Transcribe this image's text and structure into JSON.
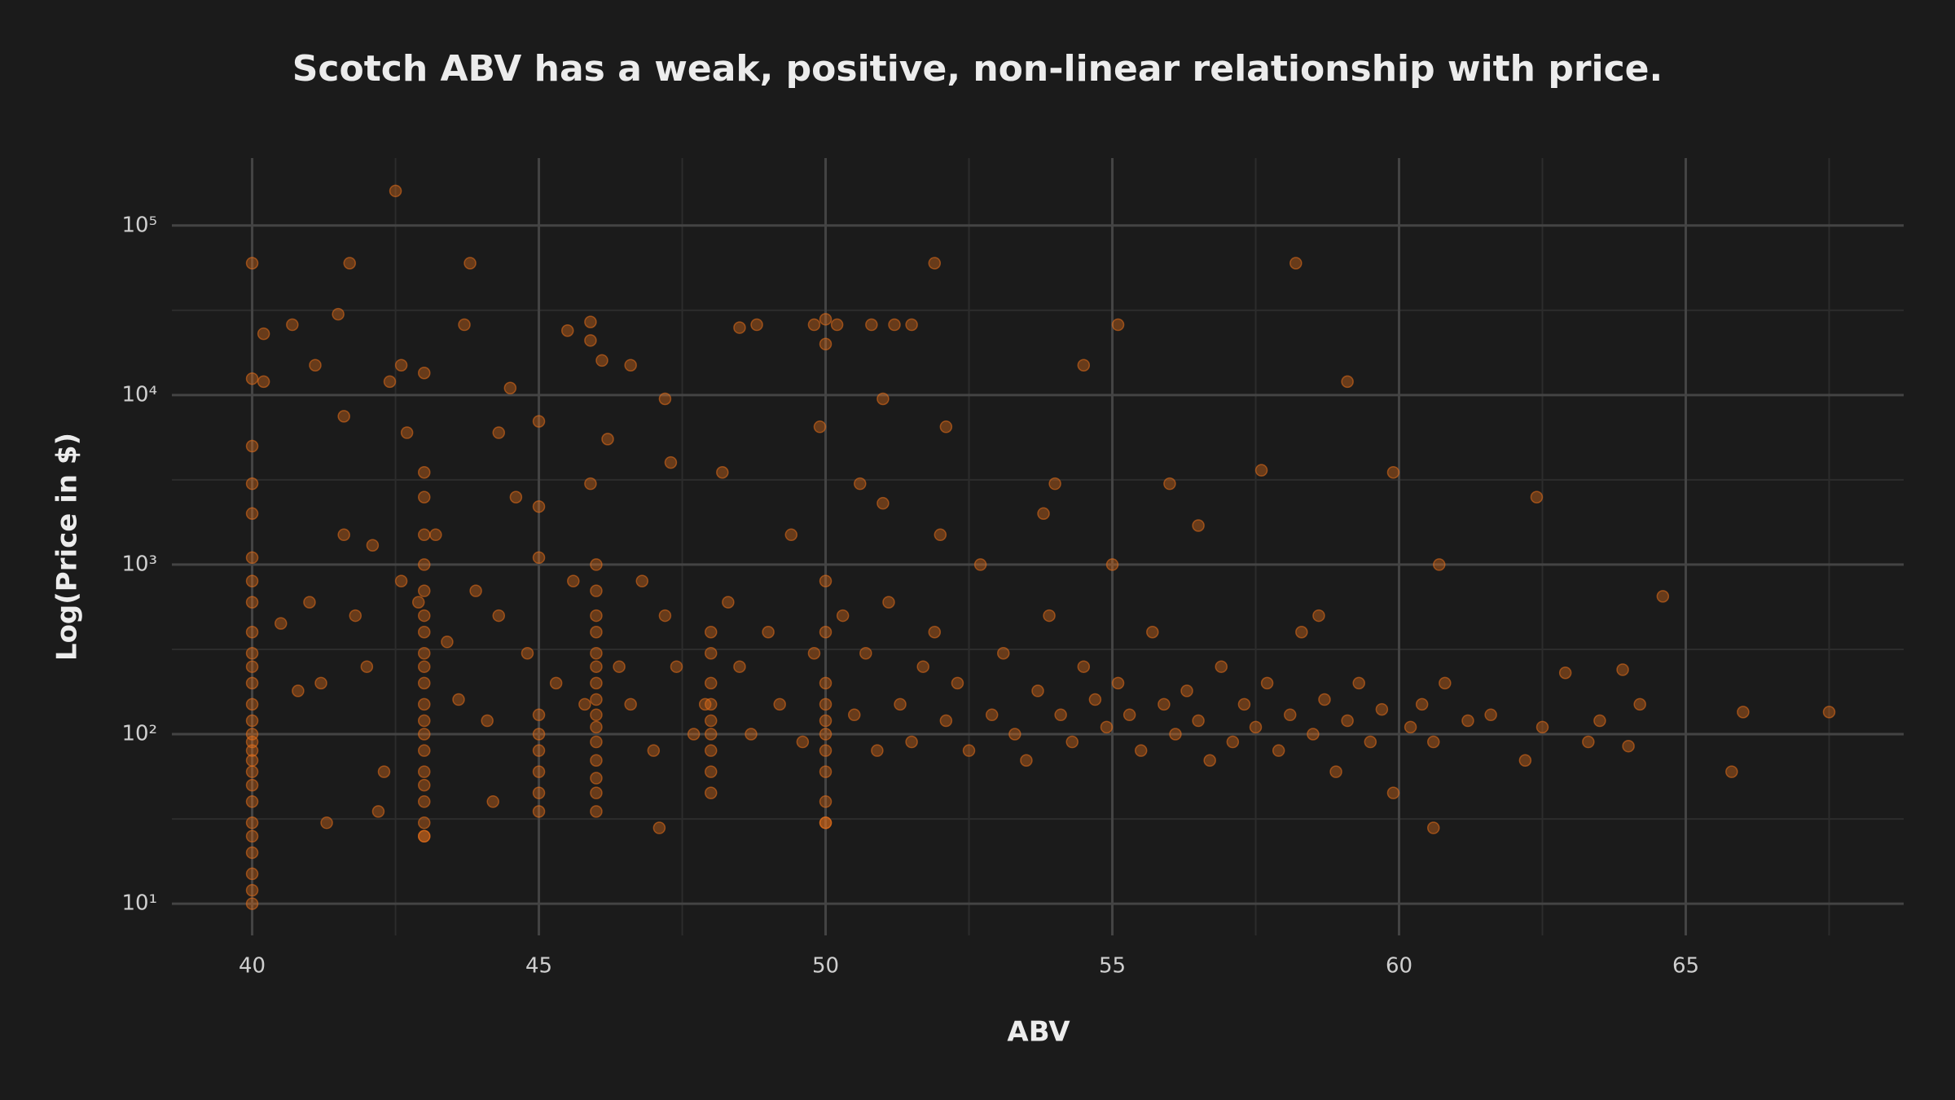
{
  "chart_data": {
    "type": "scatter",
    "title": "Scotch ABV has a weak, positive, non-linear relationship with price.",
    "x_label": "ABV",
    "y_label": "Log(Price in $)",
    "color": "#e8701a",
    "log_y": true,
    "grid": true,
    "xlim": [
      38.6,
      68.8
    ],
    "xticks": [
      40,
      45,
      50,
      55,
      60,
      65
    ],
    "x_minor_grid": [
      42.5,
      47.5,
      52.5,
      57.5,
      62.5,
      67.5
    ],
    "ylim": [
      6.5,
      250000
    ],
    "yticks": [
      {
        "value": 10,
        "label": "10¹"
      },
      {
        "value": 100,
        "label": "10²"
      },
      {
        "value": 1000,
        "label": "10³"
      },
      {
        "value": 10000,
        "label": "10⁴"
      },
      {
        "value": 100000,
        "label": "10⁵"
      }
    ],
    "y_minor_grid": [
      31.6,
      316,
      3162,
      31623
    ],
    "x": [
      40,
      40,
      40.2,
      40.2,
      40.7,
      41.1,
      41.5,
      41.7,
      42.4,
      42.5,
      42.6,
      43,
      43.8,
      43.7,
      45.5,
      45.9,
      45.9,
      46.1,
      46.6,
      48.5,
      48.8,
      49.8,
      50,
      50,
      50.2,
      50.8,
      51.2,
      51.5,
      51.9,
      55.1,
      54.5,
      58.2,
      59.1,
      47.2,
      51,
      44.5,
      45,
      49.9,
      52.1,
      56.5,
      62.4,
      64.6,
      66,
      67.5,
      65.8,
      60.6,
      47.1,
      50,
      40,
      40,
      43,
      41.3,
      44.2,
      42.2,
      40,
      40,
      40,
      40,
      40,
      40,
      40,
      40,
      40,
      40,
      40,
      40,
      40,
      40,
      40,
      40,
      40,
      40,
      40,
      40,
      40,
      40,
      40,
      43,
      43,
      43,
      43,
      43,
      43,
      43,
      43,
      43,
      43,
      43,
      43,
      43,
      43,
      43,
      43,
      43,
      43,
      43,
      46,
      46,
      46,
      46,
      46,
      46,
      46,
      46,
      46,
      46,
      46,
      46,
      46,
      46,
      46,
      48,
      48,
      48,
      48,
      48,
      48,
      48,
      48,
      48,
      50,
      50,
      50,
      50,
      50,
      50,
      50,
      50,
      50,
      50,
      45,
      45,
      45,
      45,
      45,
      45,
      45,
      45,
      40.5,
      40.8,
      41,
      41.2,
      41.6,
      41.8,
      42,
      42.1,
      42.3,
      42.6,
      42.9,
      43.4,
      43.6,
      43.9,
      44.1,
      44.3,
      44.6,
      44.8,
      45.3,
      45.6,
      45.8,
      46.4,
      46.6,
      46.8,
      47,
      47.2,
      47.4,
      47.7,
      47.9,
      48.3,
      48.5,
      48.7,
      49,
      49.2,
      49.4,
      49.6,
      49.8,
      50.3,
      50.5,
      50.7,
      50.9,
      51.1,
      51.3,
      51.5,
      51.7,
      51.9,
      52.1,
      52.3,
      52.5,
      52.7,
      52.9,
      53.1,
      53.3,
      53.5,
      53.7,
      53.9,
      54.1,
      54.3,
      54.5,
      54.7,
      54.9,
      55.1,
      55.3,
      55.5,
      55.7,
      55.9,
      56.1,
      56.3,
      56.5,
      56.7,
      56.9,
      57.1,
      57.3,
      57.5,
      57.7,
      57.9,
      58.1,
      58.3,
      58.5,
      58.7,
      58.9,
      59.1,
      59.3,
      59.5,
      59.7,
      59.9,
      60.2,
      60.4,
      60.6,
      60.8,
      61.2,
      61.6,
      62.2,
      62.5,
      62.9,
      63.3,
      63.5,
      64,
      64.2,
      63.9,
      55,
      54,
      53.8,
      56,
      57.6,
      59.9,
      58.6,
      60.7,
      52,
      51,
      50.6,
      48.2,
      47.3,
      46.2,
      45.9,
      44.3,
      43.2,
      42.7,
      41.6
    ],
    "values": [
      60000,
      12500,
      12000,
      23000,
      26000,
      15000,
      30000,
      60000,
      12000,
      160000,
      15000,
      13500,
      60000,
      26000,
      24000,
      27000,
      21000,
      16000,
      15000,
      25000,
      26000,
      26000,
      28000,
      20000,
      26000,
      26000,
      26000,
      26000,
      60000,
      26000,
      15000,
      60000,
      12000,
      9500,
      9500,
      11000,
      7000,
      6500,
      6500,
      1700,
      2500,
      650,
      135,
      135,
      60,
      28,
      28,
      30,
      10,
      12,
      25,
      30,
      40,
      35,
      15,
      20,
      25,
      30,
      40,
      50,
      60,
      70,
      80,
      90,
      100,
      120,
      150,
      200,
      250,
      300,
      400,
      600,
      800,
      1100,
      2000,
      3000,
      5000,
      25,
      30,
      40,
      50,
      60,
      80,
      100,
      120,
      150,
      200,
      250,
      300,
      400,
      500,
      700,
      1000,
      1500,
      2500,
      3500,
      35,
      45,
      55,
      70,
      90,
      110,
      130,
      160,
      200,
      250,
      300,
      400,
      500,
      700,
      1000,
      45,
      60,
      80,
      100,
      120,
      150,
      200,
      300,
      400,
      30,
      40,
      60,
      80,
      100,
      120,
      150,
      200,
      400,
      800,
      35,
      45,
      60,
      80,
      100,
      130,
      1100,
      2200,
      450,
      180,
      600,
      200,
      1500,
      500,
      250,
      1300,
      60,
      800,
      600,
      350,
      160,
      700,
      120,
      500,
      2500,
      300,
      200,
      800,
      150,
      250,
      150,
      800,
      80,
      500,
      250,
      100,
      150,
      600,
      250,
      100,
      400,
      150,
      1500,
      90,
      300,
      500,
      130,
      300,
      80,
      600,
      150,
      90,
      250,
      400,
      120,
      200,
      80,
      1000,
      130,
      300,
      100,
      70,
      180,
      500,
      130,
      90,
      250,
      160,
      110,
      200,
      130,
      80,
      400,
      150,
      100,
      180,
      120,
      70,
      250,
      90,
      150,
      110,
      200,
      80,
      130,
      400,
      100,
      160,
      60,
      120,
      200,
      90,
      140,
      45,
      110,
      150,
      90,
      200,
      120,
      130,
      70,
      110,
      230,
      90,
      120,
      85,
      150,
      240,
      1000,
      3000,
      2000,
      3000,
      3600,
      3500,
      500,
      1000,
      1500,
      2300,
      3000,
      3500,
      4000,
      5500,
      3000,
      6000,
      1500,
      6000,
      7500
    ]
  }
}
